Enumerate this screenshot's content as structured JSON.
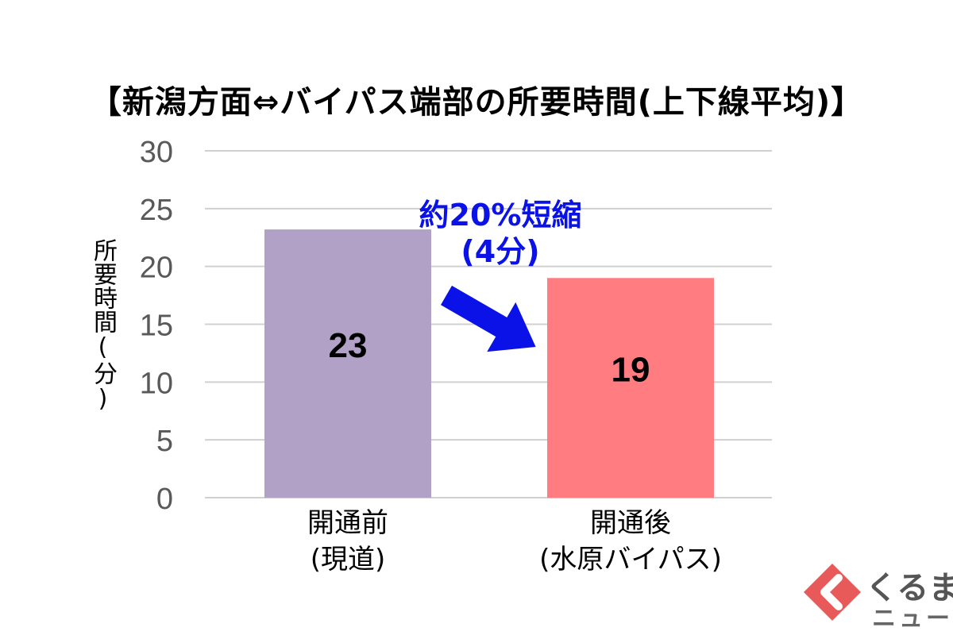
{
  "chart_data": {
    "type": "bar",
    "title": "【新潟方面⇔バイパス端部の所要時間(上下線平均)】",
    "ylabel": "所要時間(分)",
    "ylim": [
      0,
      30
    ],
    "yticks": [
      "0",
      "5",
      "10",
      "15",
      "20",
      "25",
      "30"
    ],
    "grid": true,
    "categories": [
      {
        "line1": "開通前",
        "line2": "(現道)"
      },
      {
        "line1": "開通後",
        "line2": "(水原バイパス)"
      }
    ],
    "values": [
      23.2,
      19
    ],
    "data_labels": [
      "23",
      "19"
    ],
    "colors": [
      "#b2a1c7",
      "#ff7c80"
    ],
    "annotation": {
      "line1": "約20%短縮",
      "line2": "(4分)",
      "color": "#0a12e8"
    }
  },
  "logo": {
    "text1": "くるまの",
    "text2": "ニュース",
    "color": "#e85a5a"
  }
}
